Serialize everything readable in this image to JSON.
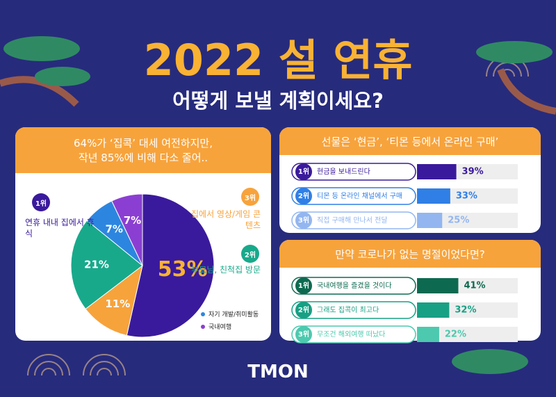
{
  "header": {
    "title": "2022 설 연휴",
    "subtitle": "어떻게 보낼 계획이세요?"
  },
  "chart_data": [
    {
      "type": "pie",
      "title": [
        "64%가 ‘집콕’ 대세 여전하지만,",
        "작년 85%에 비해 다소 줄어.."
      ],
      "categories": [
        "연휴 내내 집에서 휴식",
        "집에서 영상/게임 콘텐츠",
        "부모님, 친척집 방문",
        "자기 개발/취미활동",
        "국내여행"
      ],
      "values": [
        53,
        11,
        21,
        7,
        7
      ],
      "value_labels": [
        "53%",
        "11%",
        "21%",
        "7%",
        "7%"
      ],
      "ranks": [
        "1위",
        "3위",
        "2위",
        null,
        null
      ],
      "colors": [
        "#3a1a9c",
        "#f7a33c",
        "#18a98b",
        "#2c86e0",
        "#8b3fd2"
      ]
    },
    {
      "type": "bar",
      "title": "선물은 ‘현금’, ‘티몬 등에서 온라인 구매’",
      "categories": [
        "현금을 보내드린다",
        "티몬 등 온라인 채널에서 구매",
        "직접 구매해 만나서 전달"
      ],
      "values": [
        39,
        33,
        25
      ],
      "value_labels": [
        "39%",
        "33%",
        "25%"
      ],
      "ranks": [
        "1위",
        "2위",
        "3위"
      ],
      "colors": [
        "#3a1a9c",
        "#2f7fe6",
        "#93b6f0"
      ],
      "xlim": [
        0,
        100
      ]
    },
    {
      "type": "bar",
      "title": "만약 코로나가 없는 명절이었다면?",
      "categories": [
        "국내여행을 즐겼을 것이다",
        "그래도 집콕이 최고다",
        "무조건 해외여행 떠났다"
      ],
      "values": [
        41,
        32,
        22
      ],
      "value_labels": [
        "41%",
        "32%",
        "22%"
      ],
      "ranks": [
        "1위",
        "2위",
        "3위"
      ],
      "colors": [
        "#0d6a50",
        "#17a084",
        "#4cc9ae"
      ],
      "xlim": [
        0,
        100
      ]
    }
  ],
  "footer": {
    "logo": "TMON"
  }
}
